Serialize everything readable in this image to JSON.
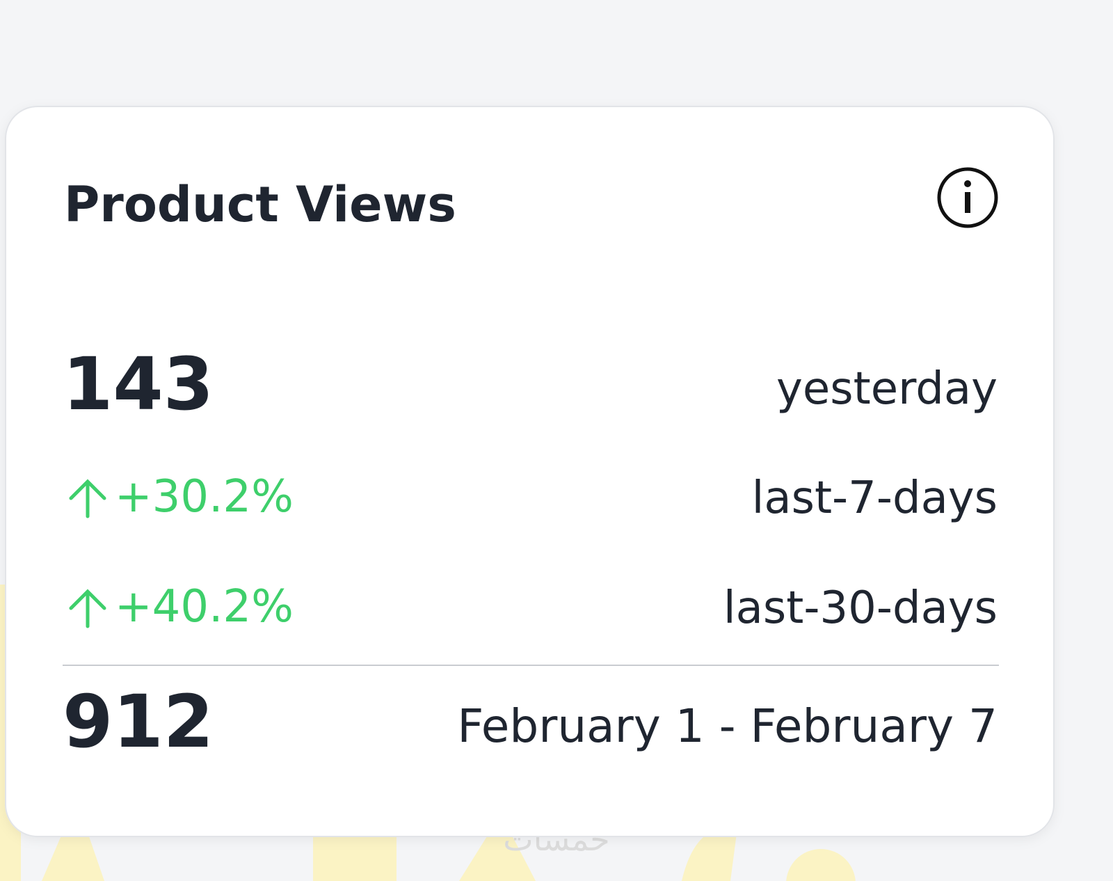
{
  "card": {
    "title": "Product Views",
    "rows": [
      {
        "value": "143",
        "label": "yesterday"
      },
      {
        "value": "+30.2%",
        "label": "last-7-days"
      },
      {
        "value": "+40.2%",
        "label": "last-30-days"
      }
    ],
    "total": {
      "value": "912",
      "label": "February 1 - February 7"
    }
  },
  "watermark": "خمسات"
}
